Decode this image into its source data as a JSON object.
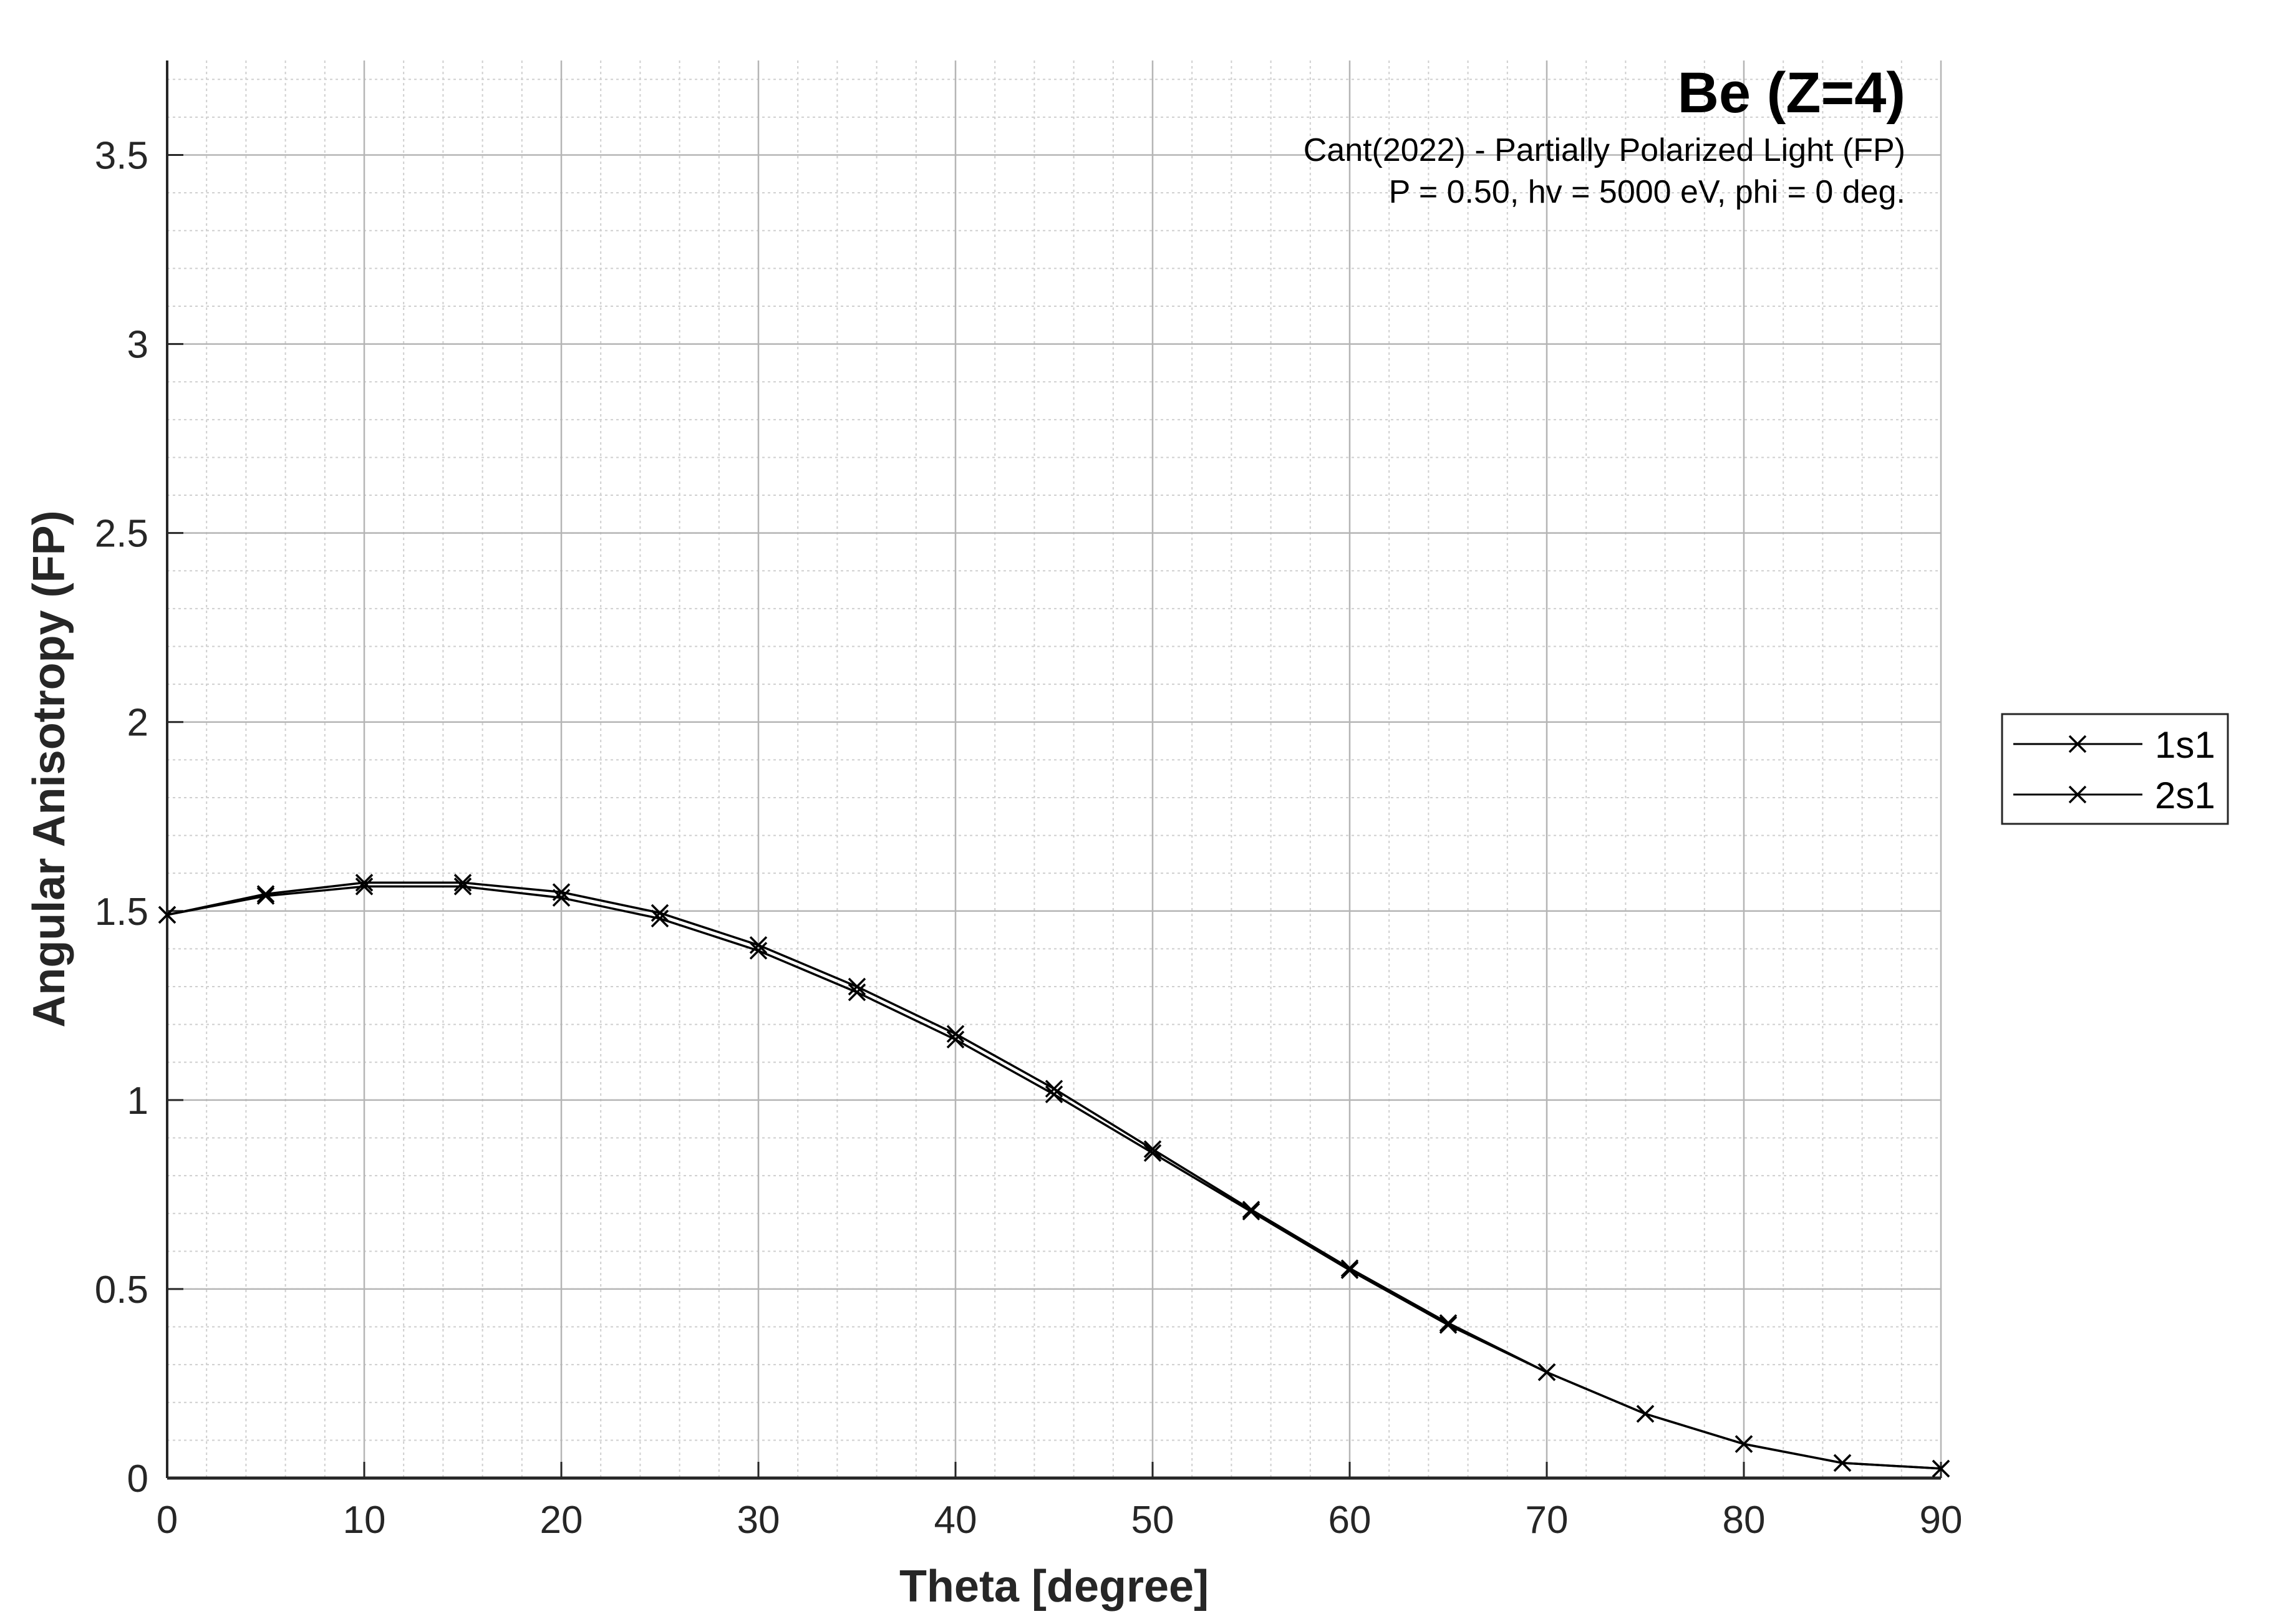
{
  "chart_data": {
    "type": "line",
    "title": "Be (Z=4)",
    "subtitle_lines": [
      "Cant(2022) - Partially Polarized Light (FP)",
      "P = 0.50, hv = 5000 eV, phi = 0 deg."
    ],
    "xlabel": "Theta [degree]",
    "ylabel": "Angular Anisotropy (FP)",
    "xlim": [
      0,
      90
    ],
    "ylim": [
      0,
      3.75
    ],
    "x_ticks": [
      0,
      10,
      20,
      30,
      40,
      50,
      60,
      70,
      80,
      90
    ],
    "x_tick_labels": [
      "0",
      "10",
      "20",
      "30",
      "40",
      "50",
      "60",
      "70",
      "80",
      "90"
    ],
    "y_ticks": [
      0,
      0.5,
      1,
      1.5,
      2,
      2.5,
      3,
      3.5
    ],
    "y_tick_labels": [
      "0",
      "0.5",
      "1",
      "1.5",
      "2",
      "2.5",
      "3",
      "3.5"
    ],
    "grid": true,
    "minor_grid": true,
    "legend_position": "outside-right",
    "x": [
      0,
      5,
      10,
      15,
      20,
      25,
      30,
      35,
      40,
      45,
      50,
      55,
      60,
      65,
      70,
      75,
      80,
      85,
      90
    ],
    "series": [
      {
        "name": "1s1",
        "color": "#000000",
        "marker": "x",
        "values": [
          1.49,
          1.545,
          1.575,
          1.575,
          1.55,
          1.495,
          1.41,
          1.3,
          1.175,
          1.03,
          0.87,
          0.71,
          0.555,
          0.41,
          0.28,
          0.17,
          0.09,
          0.04,
          0.025
        ]
      },
      {
        "name": "2s1",
        "color": "#000000",
        "marker": "x",
        "values": [
          1.49,
          1.54,
          1.565,
          1.565,
          1.535,
          1.48,
          1.395,
          1.285,
          1.16,
          1.015,
          0.86,
          0.705,
          0.55,
          0.405,
          0.28,
          0.17,
          0.09,
          0.04,
          0.025
        ]
      }
    ]
  }
}
